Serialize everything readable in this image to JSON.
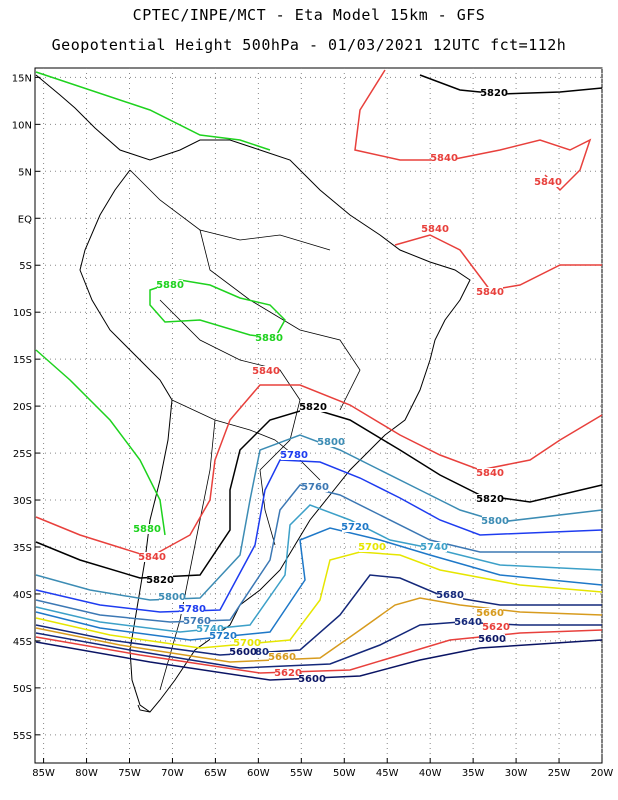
{
  "header": {
    "line1": "CPTEC/INPE/MCT -  Eta Model 15km - GFS",
    "line2": "Geopotential Height 500hPa - 01/03/2021 12UTC fct=112h"
  },
  "map": {
    "lat_ticks": [
      "15N",
      "10N",
      "5N",
      "EQ",
      "5S",
      "10S",
      "15S",
      "20S",
      "25S",
      "30S",
      "35S",
      "40S",
      "45S",
      "50S",
      "55S"
    ],
    "lon_ticks": [
      "85W",
      "80W",
      "75W",
      "70W",
      "65W",
      "60W",
      "55W",
      "50W",
      "45W",
      "40W",
      "35W",
      "30W",
      "25W",
      "20W"
    ],
    "extent": {
      "lon_min": -86,
      "lon_max": -20,
      "lat_min": -58,
      "lat_max": 16
    },
    "grid": true
  },
  "contours": {
    "levels": [
      {
        "value": 5880,
        "label": "5880",
        "color": "#1ed21e"
      },
      {
        "value": 5840,
        "label": "5840",
        "color": "#e8403c"
      },
      {
        "value": 5820,
        "label": "5820",
        "color": "#000000"
      },
      {
        "value": 5800,
        "label": "5800",
        "color": "#3c8cb4"
      },
      {
        "value": 5780,
        "label": "5780",
        "color": "#1e3cf0"
      },
      {
        "value": 5760,
        "label": "5760",
        "color": "#3c78b4"
      },
      {
        "value": 5740,
        "label": "5740",
        "color": "#3ca0c8"
      },
      {
        "value": 5720,
        "label": "5720",
        "color": "#1e78c8"
      },
      {
        "value": 5700,
        "label": "5700",
        "color": "#e6e600"
      },
      {
        "value": 5680,
        "label": "5680",
        "color": "#14287a"
      },
      {
        "value": 5660,
        "label": "5660",
        "color": "#d79b1e"
      },
      {
        "value": 5640,
        "label": "5640",
        "color": "#14287a"
      },
      {
        "value": 5620,
        "label": "5620",
        "color": "#e8403c"
      },
      {
        "value": 5600,
        "label": "5600",
        "color": "#0a1464"
      }
    ]
  }
}
